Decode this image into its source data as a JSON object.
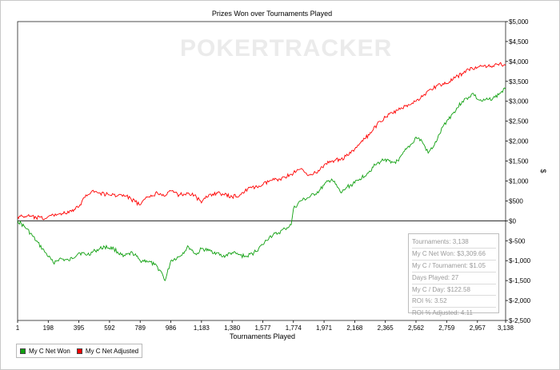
{
  "chart_data": {
    "type": "line",
    "title": "Prizes Won over Tournaments Played",
    "xlabel": "Tournaments Played",
    "ylabel": "$",
    "watermark": "POKERTRACKER",
    "xlim": [
      1,
      3138
    ],
    "ylim": [
      -2500,
      5000
    ],
    "x_ticks": [
      1,
      198,
      395,
      592,
      789,
      986,
      1183,
      1380,
      1577,
      1774,
      1971,
      2168,
      2365,
      2562,
      2759,
      2957,
      3138
    ],
    "x_tick_labels": [
      "1",
      "198",
      "395",
      "592",
      "789",
      "986",
      "1,183",
      "1,380",
      "1,577",
      "1,774",
      "1,971",
      "2,168",
      "2,365",
      "2,562",
      "2,759",
      "2,957",
      "3,138"
    ],
    "y_ticks": [
      -2500,
      -2000,
      -1500,
      -1000,
      -500,
      0,
      500,
      1000,
      1500,
      2000,
      2500,
      3000,
      3500,
      4000,
      4500,
      5000
    ],
    "y_tick_labels": [
      "$-2,500",
      "$-2,000",
      "$-1,500",
      "$-1,000",
      "$-500",
      "$0",
      "$500",
      "$1,000",
      "$1,500",
      "$2,000",
      "$2,500",
      "$3,000",
      "$3,500",
      "$4,000",
      "$4,500",
      "$5,000"
    ],
    "y_axis_side": "right",
    "grid": false,
    "legend_position": "bottom-left",
    "zero_line": true,
    "series": [
      {
        "name": "My C Net Won",
        "color": "#10a010",
        "x": [
          1,
          60,
          120,
          180,
          230,
          270,
          330,
          395,
          450,
          500,
          560,
          620,
          680,
          740,
          789,
          830,
          880,
          920,
          950,
          986,
          1040,
          1100,
          1150,
          1183,
          1230,
          1280,
          1320,
          1380,
          1420,
          1470,
          1520,
          1577,
          1620,
          1680,
          1720,
          1760,
          1774,
          1820,
          1880,
          1940,
          1971,
          2020,
          2080,
          2120,
          2168,
          2200,
          2250,
          2300,
          2340,
          2365,
          2400,
          2450,
          2500,
          2540,
          2562,
          2600,
          2640,
          2680,
          2700,
          2740,
          2759,
          2800,
          2860,
          2900,
          2930,
          2957,
          2990,
          3030,
          3070,
          3100,
          3138
        ],
        "y": [
          0,
          -200,
          -500,
          -800,
          -1050,
          -950,
          -1000,
          -800,
          -850,
          -750,
          -650,
          -700,
          -900,
          -800,
          -1000,
          -1000,
          -1100,
          -1250,
          -1500,
          -1000,
          -900,
          -650,
          -850,
          -700,
          -750,
          -800,
          -900,
          -800,
          -850,
          -900,
          -800,
          -600,
          -400,
          -300,
          -200,
          -100,
          300,
          500,
          600,
          750,
          900,
          1050,
          700,
          850,
          950,
          1050,
          1200,
          1400,
          1500,
          1550,
          1450,
          1500,
          1800,
          1950,
          2100,
          2000,
          1700,
          1900,
          2050,
          2400,
          2500,
          2700,
          3000,
          3100,
          3200,
          3050,
          3000,
          3050,
          3100,
          3200,
          3310
        ]
      },
      {
        "name": "My C Net Adjusted",
        "color": "#ff0000",
        "x": [
          1,
          60,
          120,
          180,
          230,
          270,
          330,
          395,
          440,
          480,
          520,
          592,
          650,
          700,
          789,
          840,
          900,
          960,
          986,
          1040,
          1100,
          1150,
          1183,
          1230,
          1280,
          1330,
          1380,
          1430,
          1480,
          1540,
          1577,
          1620,
          1680,
          1720,
          1774,
          1820,
          1880,
          1940,
          1971,
          2020,
          2080,
          2130,
          2168,
          2220,
          2280,
          2330,
          2365,
          2410,
          2460,
          2500,
          2562,
          2610,
          2660,
          2700,
          2759,
          2800,
          2860,
          2900,
          2957,
          3000,
          3050,
          3100,
          3138
        ],
        "y": [
          100,
          120,
          80,
          60,
          150,
          180,
          200,
          350,
          650,
          750,
          700,
          650,
          650,
          620,
          400,
          600,
          700,
          650,
          750,
          650,
          700,
          600,
          450,
          650,
          700,
          650,
          600,
          650,
          800,
          850,
          900,
          1000,
          1050,
          1100,
          1200,
          1300,
          1150,
          1250,
          1400,
          1500,
          1550,
          1650,
          1800,
          2000,
          2250,
          2500,
          2600,
          2700,
          2800,
          2900,
          3000,
          3150,
          3300,
          3400,
          3450,
          3550,
          3700,
          3800,
          3850,
          3900,
          3850,
          3950,
          3900
        ]
      }
    ],
    "stats": [
      "Tournaments: 3,138",
      "My C Net Won: $3,309.66",
      "My C / Tournament: $1.05",
      "Days Played: 27",
      "My C / Day: $122.58",
      "ROI %: 3.52",
      "ROI % Adjusted: 4.11"
    ]
  }
}
